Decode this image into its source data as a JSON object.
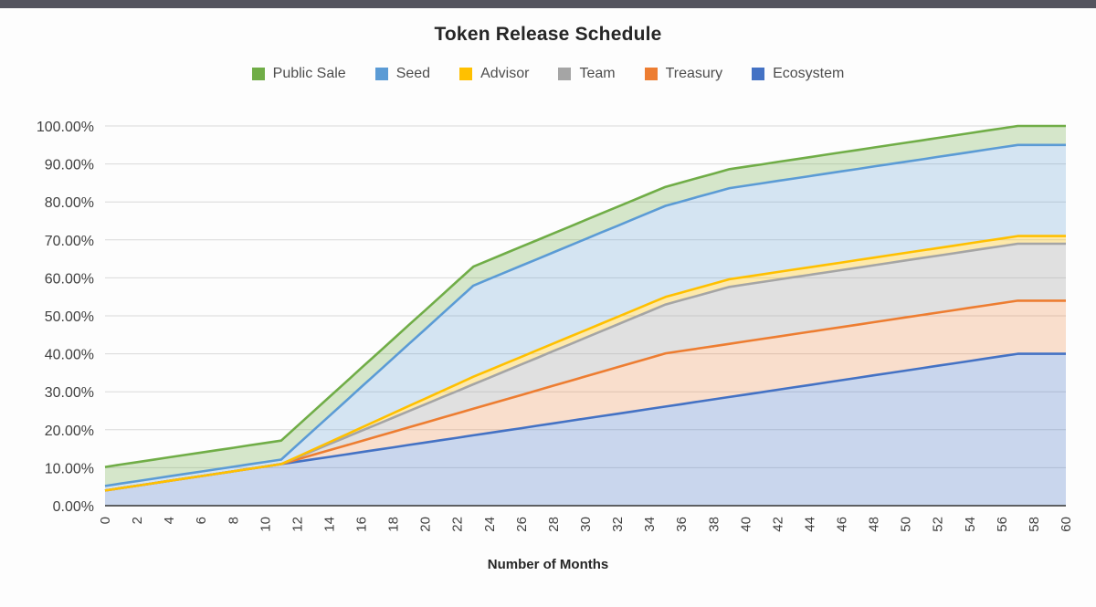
{
  "page": {
    "top_bar_color": "#54545e",
    "background": "#fdfdfd"
  },
  "chart": {
    "title": "Token Release Schedule",
    "x_axis_title": "Number of Months",
    "grid_color": "#d9d9d9",
    "axis_line_color": "#333333",
    "tick_label_color": "#404040"
  },
  "chart_data": {
    "type": "area",
    "stacked": true,
    "title": "Token Release Schedule",
    "xlabel": "Number of Months",
    "ylabel": "",
    "ylim": [
      0,
      100
    ],
    "grid": true,
    "legend_position": "top",
    "y_tick_labels": [
      "100.00%",
      "90.00%",
      "80.00%",
      "70.00%",
      "60.00%",
      "50.00%",
      "40.00%",
      "30.00%",
      "20.00%",
      "10.00%",
      "0.00%"
    ],
    "y_tick_values": [
      100,
      90,
      80,
      70,
      60,
      50,
      40,
      30,
      20,
      10,
      0
    ],
    "x_tick_values": [
      0,
      2,
      4,
      6,
      8,
      10,
      12,
      14,
      16,
      18,
      20,
      22,
      24,
      26,
      28,
      30,
      32,
      34,
      36,
      38,
      40,
      42,
      44,
      46,
      48,
      50,
      52,
      54,
      56,
      58,
      60
    ],
    "x": [
      0,
      1,
      2,
      3,
      4,
      5,
      6,
      7,
      8,
      9,
      10,
      11,
      12,
      13,
      14,
      15,
      16,
      17,
      18,
      19,
      20,
      21,
      22,
      23,
      24,
      25,
      26,
      27,
      28,
      29,
      30,
      31,
      32,
      33,
      34,
      35,
      36,
      37,
      38,
      39,
      40,
      41,
      42,
      43,
      44,
      45,
      46,
      47,
      48,
      49,
      50,
      51,
      52,
      53,
      54,
      55,
      56,
      57,
      58,
      59,
      60
    ],
    "legend_items": [
      {
        "label": "Public Sale",
        "color": "#70ad47"
      },
      {
        "label": "Seed",
        "color": "#5b9bd5"
      },
      {
        "label": "Advisor",
        "color": "#ffc000"
      },
      {
        "label": "Team",
        "color": "#a5a5a5"
      },
      {
        "label": "Treasury",
        "color": "#ed7d31"
      },
      {
        "label": "Ecosystem",
        "color": "#4472c4"
      }
    ],
    "series": [
      {
        "name": "Ecosystem",
        "color": "#4472c4",
        "fill": "rgba(68,114,196,0.28)",
        "values": [
          4.0,
          4.63,
          5.26,
          5.89,
          6.53,
          7.16,
          7.79,
          8.42,
          9.05,
          9.68,
          10.32,
          10.95,
          11.58,
          12.21,
          12.84,
          13.47,
          14.11,
          14.74,
          15.37,
          16.0,
          16.63,
          17.26,
          17.89,
          18.53,
          19.16,
          19.79,
          20.42,
          21.05,
          21.68,
          22.32,
          22.95,
          23.58,
          24.21,
          24.84,
          25.47,
          26.11,
          26.74,
          27.37,
          28.0,
          28.63,
          29.26,
          29.89,
          30.53,
          31.16,
          31.79,
          32.42,
          33.05,
          33.68,
          34.32,
          34.95,
          35.58,
          36.21,
          36.84,
          37.47,
          38.11,
          38.74,
          39.37,
          40.0,
          40.0,
          40.0,
          40.0
        ]
      },
      {
        "name": "Treasury",
        "color": "#ed7d31",
        "fill": "rgba(237,125,49,0.24)",
        "values": [
          0,
          0,
          0,
          0,
          0,
          0,
          0,
          0,
          0,
          0,
          0,
          0,
          0.58,
          1.17,
          1.75,
          2.33,
          2.92,
          3.5,
          4.08,
          4.67,
          5.25,
          5.83,
          6.42,
          7.0,
          7.58,
          8.17,
          8.75,
          9.33,
          9.92,
          10.5,
          11.08,
          11.67,
          12.25,
          12.83,
          13.42,
          14.0,
          14.0,
          14.0,
          14.0,
          14.0,
          14.0,
          14.0,
          14.0,
          14.0,
          14.0,
          14.0,
          14.0,
          14.0,
          14.0,
          14.0,
          14.0,
          14.0,
          14.0,
          14.0,
          14.0,
          14.0,
          14.0,
          14.0,
          14.0,
          14.0,
          14.0
        ]
      },
      {
        "name": "Team",
        "color": "#a5a5a5",
        "fill": "rgba(165,165,165,0.32)",
        "values": [
          0,
          0,
          0,
          0,
          0,
          0,
          0,
          0,
          0,
          0,
          0,
          0,
          0.54,
          1.07,
          1.61,
          2.14,
          2.68,
          3.21,
          3.75,
          4.29,
          4.82,
          5.36,
          5.89,
          6.43,
          6.96,
          7.5,
          8.04,
          8.57,
          9.11,
          9.64,
          10.18,
          10.71,
          11.25,
          11.79,
          12.32,
          12.86,
          13.39,
          13.93,
          14.46,
          15.0,
          15.0,
          15.0,
          15.0,
          15.0,
          15.0,
          15.0,
          15.0,
          15.0,
          15.0,
          15.0,
          15.0,
          15.0,
          15.0,
          15.0,
          15.0,
          15.0,
          15.0,
          15.0,
          15.0,
          15.0,
          15.0
        ]
      },
      {
        "name": "Advisor",
        "color": "#ffc000",
        "fill": "rgba(255,192,0,0.32)",
        "values": [
          0,
          0,
          0,
          0,
          0,
          0,
          0,
          0,
          0,
          0,
          0,
          0,
          0.17,
          0.33,
          0.5,
          0.67,
          0.83,
          1.0,
          1.17,
          1.33,
          1.5,
          1.67,
          1.83,
          2.0,
          2.0,
          2.0,
          2.0,
          2.0,
          2.0,
          2.0,
          2.0,
          2.0,
          2.0,
          2.0,
          2.0,
          2.0,
          2.0,
          2.0,
          2.0,
          2.0,
          2.0,
          2.0,
          2.0,
          2.0,
          2.0,
          2.0,
          2.0,
          2.0,
          2.0,
          2.0,
          2.0,
          2.0,
          2.0,
          2.0,
          2.0,
          2.0,
          2.0,
          2.0,
          2.0,
          2.0,
          2.0
        ]
      },
      {
        "name": "Seed",
        "color": "#5b9bd5",
        "fill": "rgba(91,155,213,0.25)",
        "values": [
          1.2,
          1.2,
          1.2,
          1.2,
          1.2,
          1.2,
          1.2,
          1.2,
          1.2,
          1.2,
          1.2,
          1.2,
          3.1,
          5.0,
          6.9,
          8.8,
          10.7,
          12.6,
          14.5,
          16.4,
          18.3,
          20.2,
          22.1,
          24.0,
          24.0,
          24.0,
          24.0,
          24.0,
          24.0,
          24.0,
          24.0,
          24.0,
          24.0,
          24.0,
          24.0,
          24.0,
          24.0,
          24.0,
          24.0,
          24.0,
          24.0,
          24.0,
          24.0,
          24.0,
          24.0,
          24.0,
          24.0,
          24.0,
          24.0,
          24.0,
          24.0,
          24.0,
          24.0,
          24.0,
          24.0,
          24.0,
          24.0,
          24.0,
          24.0,
          24.0,
          24.0
        ]
      },
      {
        "name": "Public Sale",
        "color": "#70ad47",
        "fill": "rgba(112,173,71,0.28)",
        "values": [
          5.0,
          5.0,
          5.0,
          5.0,
          5.0,
          5.0,
          5.0,
          5.0,
          5.0,
          5.0,
          5.0,
          5.0,
          5.0,
          5.0,
          5.0,
          5.0,
          5.0,
          5.0,
          5.0,
          5.0,
          5.0,
          5.0,
          5.0,
          5.0,
          5.0,
          5.0,
          5.0,
          5.0,
          5.0,
          5.0,
          5.0,
          5.0,
          5.0,
          5.0,
          5.0,
          5.0,
          5.0,
          5.0,
          5.0,
          5.0,
          5.0,
          5.0,
          5.0,
          5.0,
          5.0,
          5.0,
          5.0,
          5.0,
          5.0,
          5.0,
          5.0,
          5.0,
          5.0,
          5.0,
          5.0,
          5.0,
          5.0,
          5.0,
          5.0,
          5.0,
          5.0
        ]
      }
    ]
  }
}
